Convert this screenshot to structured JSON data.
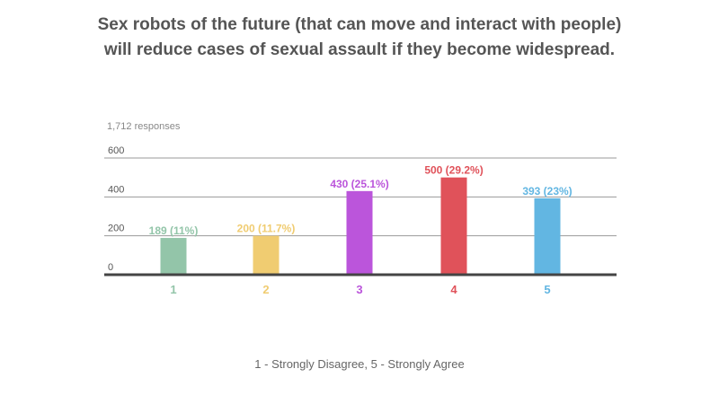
{
  "title": {
    "line1": "Sex robots of the future (that can move and interact with people)",
    "line2": "will reduce cases of sexual assault if they become widespread."
  },
  "chart_data": {
    "type": "bar",
    "title": "Sex robots of the future (that can move and interact with people) will reduce cases of sexual assault if they become widespread.",
    "subtitle": "1,712 responses",
    "xlabel": "",
    "ylabel": "",
    "ylim": [
      0,
      600
    ],
    "yticks": [
      0,
      200,
      400,
      600
    ],
    "grid": true,
    "categories": [
      "1",
      "2",
      "3",
      "4",
      "5"
    ],
    "values": [
      189,
      200,
      430,
      500,
      393
    ],
    "data_labels": [
      "189 (11%)",
      "200 (11.7%)",
      "430 (25.1%)",
      "500 (29.2%)",
      "393 (23%)"
    ],
    "colors": [
      "#93c5a9",
      "#f0cc71",
      "#bb55db",
      "#e0525a",
      "#62b6e2"
    ]
  },
  "footnote": "1 - Strongly Disagree,  5 - Strongly Agree"
}
